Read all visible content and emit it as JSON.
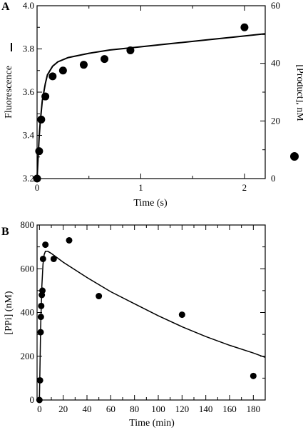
{
  "chart_data": [
    {
      "panel": "A",
      "type": "scatter",
      "xlabel": "Time (s)",
      "ylabel_left": "Fluorescence",
      "ylabel_right": "[Product], nM",
      "xlim": [
        0,
        2.2
      ],
      "ylim_left": [
        3.2,
        4.0
      ],
      "ylim_right": [
        0,
        60
      ],
      "x_ticks": [
        "0",
        "1",
        "2"
      ],
      "y_ticks_left": [
        "3.2",
        "3.4",
        "3.6",
        "3.8",
        "4.0"
      ],
      "y_ticks_right": [
        "0",
        "20",
        "40",
        "60"
      ],
      "series": [
        {
          "name": "Fluorescence",
          "kind": "line",
          "axis": "left",
          "x": [
            0,
            0.01,
            0.02,
            0.03,
            0.05,
            0.08,
            0.1,
            0.15,
            0.2,
            0.3,
            0.4,
            0.5,
            0.7,
            1.0,
            1.3,
            1.6,
            1.9,
            2.2
          ],
          "y": [
            3.2,
            3.3,
            3.39,
            3.46,
            3.56,
            3.64,
            3.68,
            3.72,
            3.74,
            3.76,
            3.77,
            3.78,
            3.795,
            3.81,
            3.825,
            3.84,
            3.855,
            3.87
          ]
        },
        {
          "name": "[Product], nM",
          "kind": "points",
          "axis": "right",
          "x": [
            0.0,
            0.02,
            0.04,
            0.08,
            0.15,
            0.25,
            0.45,
            0.65,
            0.9,
            2.0
          ],
          "y": [
            0,
            9.5,
            20.5,
            28.5,
            35.5,
            37.5,
            39.5,
            41.5,
            44.5,
            52.5
          ]
        }
      ]
    },
    {
      "panel": "B",
      "type": "scatter",
      "xlabel": "Time (min)",
      "ylabel": "[PPi] (nM)",
      "xlim": [
        -2,
        190
      ],
      "ylim": [
        0,
        800
      ],
      "x_ticks": [
        "0",
        "20",
        "40",
        "60",
        "80",
        "100",
        "120",
        "140",
        "160",
        "180"
      ],
      "y_ticks": [
        "0",
        "200",
        "400",
        "600",
        "800"
      ],
      "series": [
        {
          "kind": "points",
          "x": [
            0,
            0.5,
            1,
            1.2,
            1.5,
            2,
            2.5,
            3,
            5,
            12,
            25,
            50,
            120,
            180
          ],
          "y": [
            0,
            90,
            310,
            380,
            430,
            480,
            500,
            645,
            710,
            645,
            730,
            475,
            390,
            110
          ]
        },
        {
          "kind": "line",
          "x": [
            0,
            1,
            2,
            3,
            4,
            5,
            7,
            10,
            20,
            40,
            60,
            80,
            100,
            120,
            140,
            160,
            180,
            190
          ],
          "y": [
            0,
            330,
            520,
            620,
            665,
            680,
            680,
            670,
            630,
            560,
            495,
            440,
            385,
            335,
            290,
            250,
            215,
            195
          ]
        }
      ]
    }
  ]
}
